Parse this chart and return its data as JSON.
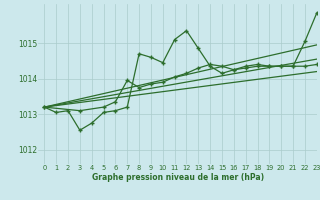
{
  "title": "Graphe pression niveau de la mer (hPa)",
  "bg_color": "#cce8ec",
  "grid_color": "#aacccc",
  "line_color": "#2d6e2d",
  "xlim": [
    -0.5,
    23
  ],
  "ylim": [
    1011.6,
    1016.1
  ],
  "yticks": [
    1012,
    1013,
    1014,
    1015
  ],
  "xticks": [
    0,
    1,
    2,
    3,
    4,
    5,
    6,
    7,
    8,
    9,
    10,
    11,
    12,
    13,
    14,
    15,
    16,
    17,
    18,
    19,
    20,
    21,
    22,
    23
  ],
  "series1": [
    [
      0,
      1013.2
    ],
    [
      1,
      1013.05
    ],
    [
      2,
      1013.1
    ],
    [
      3,
      1012.55
    ],
    [
      4,
      1012.75
    ],
    [
      5,
      1013.05
    ],
    [
      6,
      1013.1
    ],
    [
      7,
      1013.2
    ],
    [
      8,
      1014.7
    ],
    [
      9,
      1014.6
    ],
    [
      10,
      1014.45
    ],
    [
      11,
      1015.1
    ],
    [
      12,
      1015.35
    ],
    [
      13,
      1014.85
    ],
    [
      14,
      1014.35
    ],
    [
      15,
      1014.15
    ],
    [
      16,
      1014.25
    ],
    [
      17,
      1014.35
    ],
    [
      18,
      1014.4
    ],
    [
      19,
      1014.35
    ],
    [
      20,
      1014.35
    ],
    [
      21,
      1014.35
    ],
    [
      22,
      1015.05
    ],
    [
      23,
      1015.85
    ]
  ],
  "series2": [
    [
      0,
      1013.2
    ],
    [
      3,
      1013.1
    ],
    [
      5,
      1013.2
    ],
    [
      6,
      1013.35
    ],
    [
      7,
      1013.95
    ],
    [
      8,
      1013.75
    ],
    [
      9,
      1013.85
    ],
    [
      10,
      1013.9
    ],
    [
      11,
      1014.05
    ],
    [
      12,
      1014.15
    ],
    [
      13,
      1014.3
    ],
    [
      14,
      1014.4
    ],
    [
      15,
      1014.35
    ],
    [
      16,
      1014.25
    ],
    [
      17,
      1014.3
    ],
    [
      18,
      1014.35
    ],
    [
      19,
      1014.35
    ],
    [
      20,
      1014.35
    ],
    [
      21,
      1014.35
    ],
    [
      22,
      1014.35
    ],
    [
      23,
      1014.4
    ]
  ],
  "line1": [
    [
      0,
      1013.2
    ],
    [
      23,
      1014.95
    ]
  ],
  "line2": [
    [
      0,
      1013.2
    ],
    [
      23,
      1014.55
    ]
  ],
  "line3": [
    [
      0,
      1013.2
    ],
    [
      23,
      1014.2
    ]
  ]
}
